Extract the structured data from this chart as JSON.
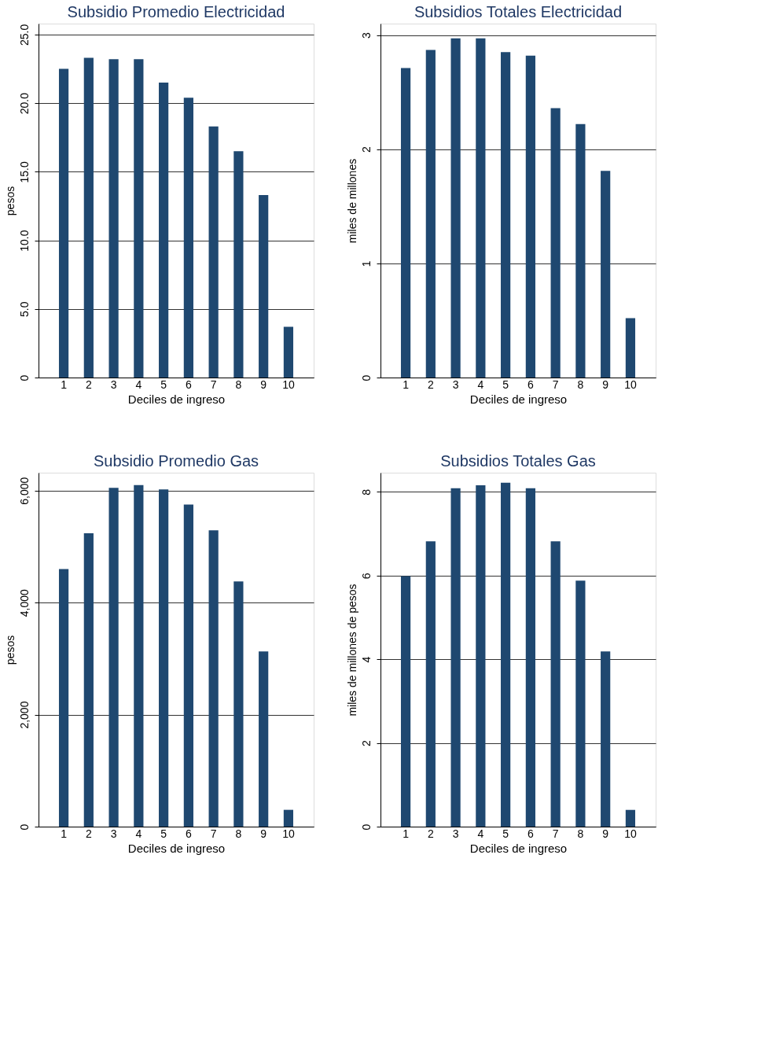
{
  "chart_data": [
    {
      "type": "bar",
      "title": "Subsidio Promedio Electricidad",
      "xlabel": "Deciles de ingreso",
      "ylabel": "pesos",
      "categories": [
        "1",
        "2",
        "3",
        "4",
        "5",
        "6",
        "7",
        "8",
        "9",
        "10"
      ],
      "values": [
        22.5,
        23.3,
        23.2,
        23.2,
        21.5,
        20.4,
        18.3,
        16.5,
        13.3,
        3.7
      ],
      "color": "#1f4870",
      "ylim": [
        0,
        25.8
      ],
      "yticks": [
        {
          "value": 0,
          "label": "0"
        },
        {
          "value": 5,
          "label": "5.0"
        },
        {
          "value": 10,
          "label": "10.0"
        },
        {
          "value": 15,
          "label": "15.0"
        },
        {
          "value": 20,
          "label": "20.0"
        },
        {
          "value": 25,
          "label": "25.0"
        }
      ],
      "grid": "y"
    },
    {
      "type": "bar",
      "title": "Subsidios Totales Electricidad",
      "xlabel": "Deciles de ingreso",
      "ylabel": "miles de millones",
      "categories": [
        "1",
        "2",
        "3",
        "4",
        "5",
        "6",
        "7",
        "8",
        "9",
        "10"
      ],
      "values": [
        2.71,
        2.87,
        2.97,
        2.97,
        2.85,
        2.82,
        2.36,
        2.22,
        1.81,
        0.52
      ],
      "color": "#1f4870",
      "ylim": [
        0,
        3.1
      ],
      "yticks": [
        0,
        1,
        2,
        3
      ],
      "grid": "y"
    },
    {
      "type": "bar",
      "title": "Subsidio Promedio Gas",
      "xlabel": "Deciles de ingreso",
      "ylabel": "pesos",
      "categories": [
        "1",
        "2",
        "3",
        "4",
        "5",
        "6",
        "7",
        "8",
        "9",
        "10"
      ],
      "values": [
        4600,
        5240,
        6050,
        6100,
        6020,
        5750,
        5290,
        4380,
        3130,
        300
      ],
      "color": "#1f4870",
      "ylim": [
        0,
        6320
      ],
      "yticks": [
        0,
        {
          "value": 2000,
          "label": "2,000"
        },
        {
          "value": 4000,
          "label": "4,000"
        },
        {
          "value": 6000,
          "label": "6,000"
        }
      ],
      "grid": "y"
    },
    {
      "type": "bar",
      "title": "Subsidios Totales Gas",
      "xlabel": "Deciles de ingreso",
      "ylabel": "miles de millones de pesos",
      "categories": [
        "1",
        "2",
        "3",
        "4",
        "5",
        "6",
        "7",
        "8",
        "9",
        "10"
      ],
      "values": [
        5.99,
        6.82,
        8.09,
        8.16,
        8.22,
        8.09,
        6.82,
        5.88,
        4.19,
        0.4
      ],
      "color": "#1f4870",
      "ylim": [
        0,
        8.46
      ],
      "yticks": [
        0,
        2,
        4,
        6,
        8
      ],
      "grid": "y"
    }
  ]
}
